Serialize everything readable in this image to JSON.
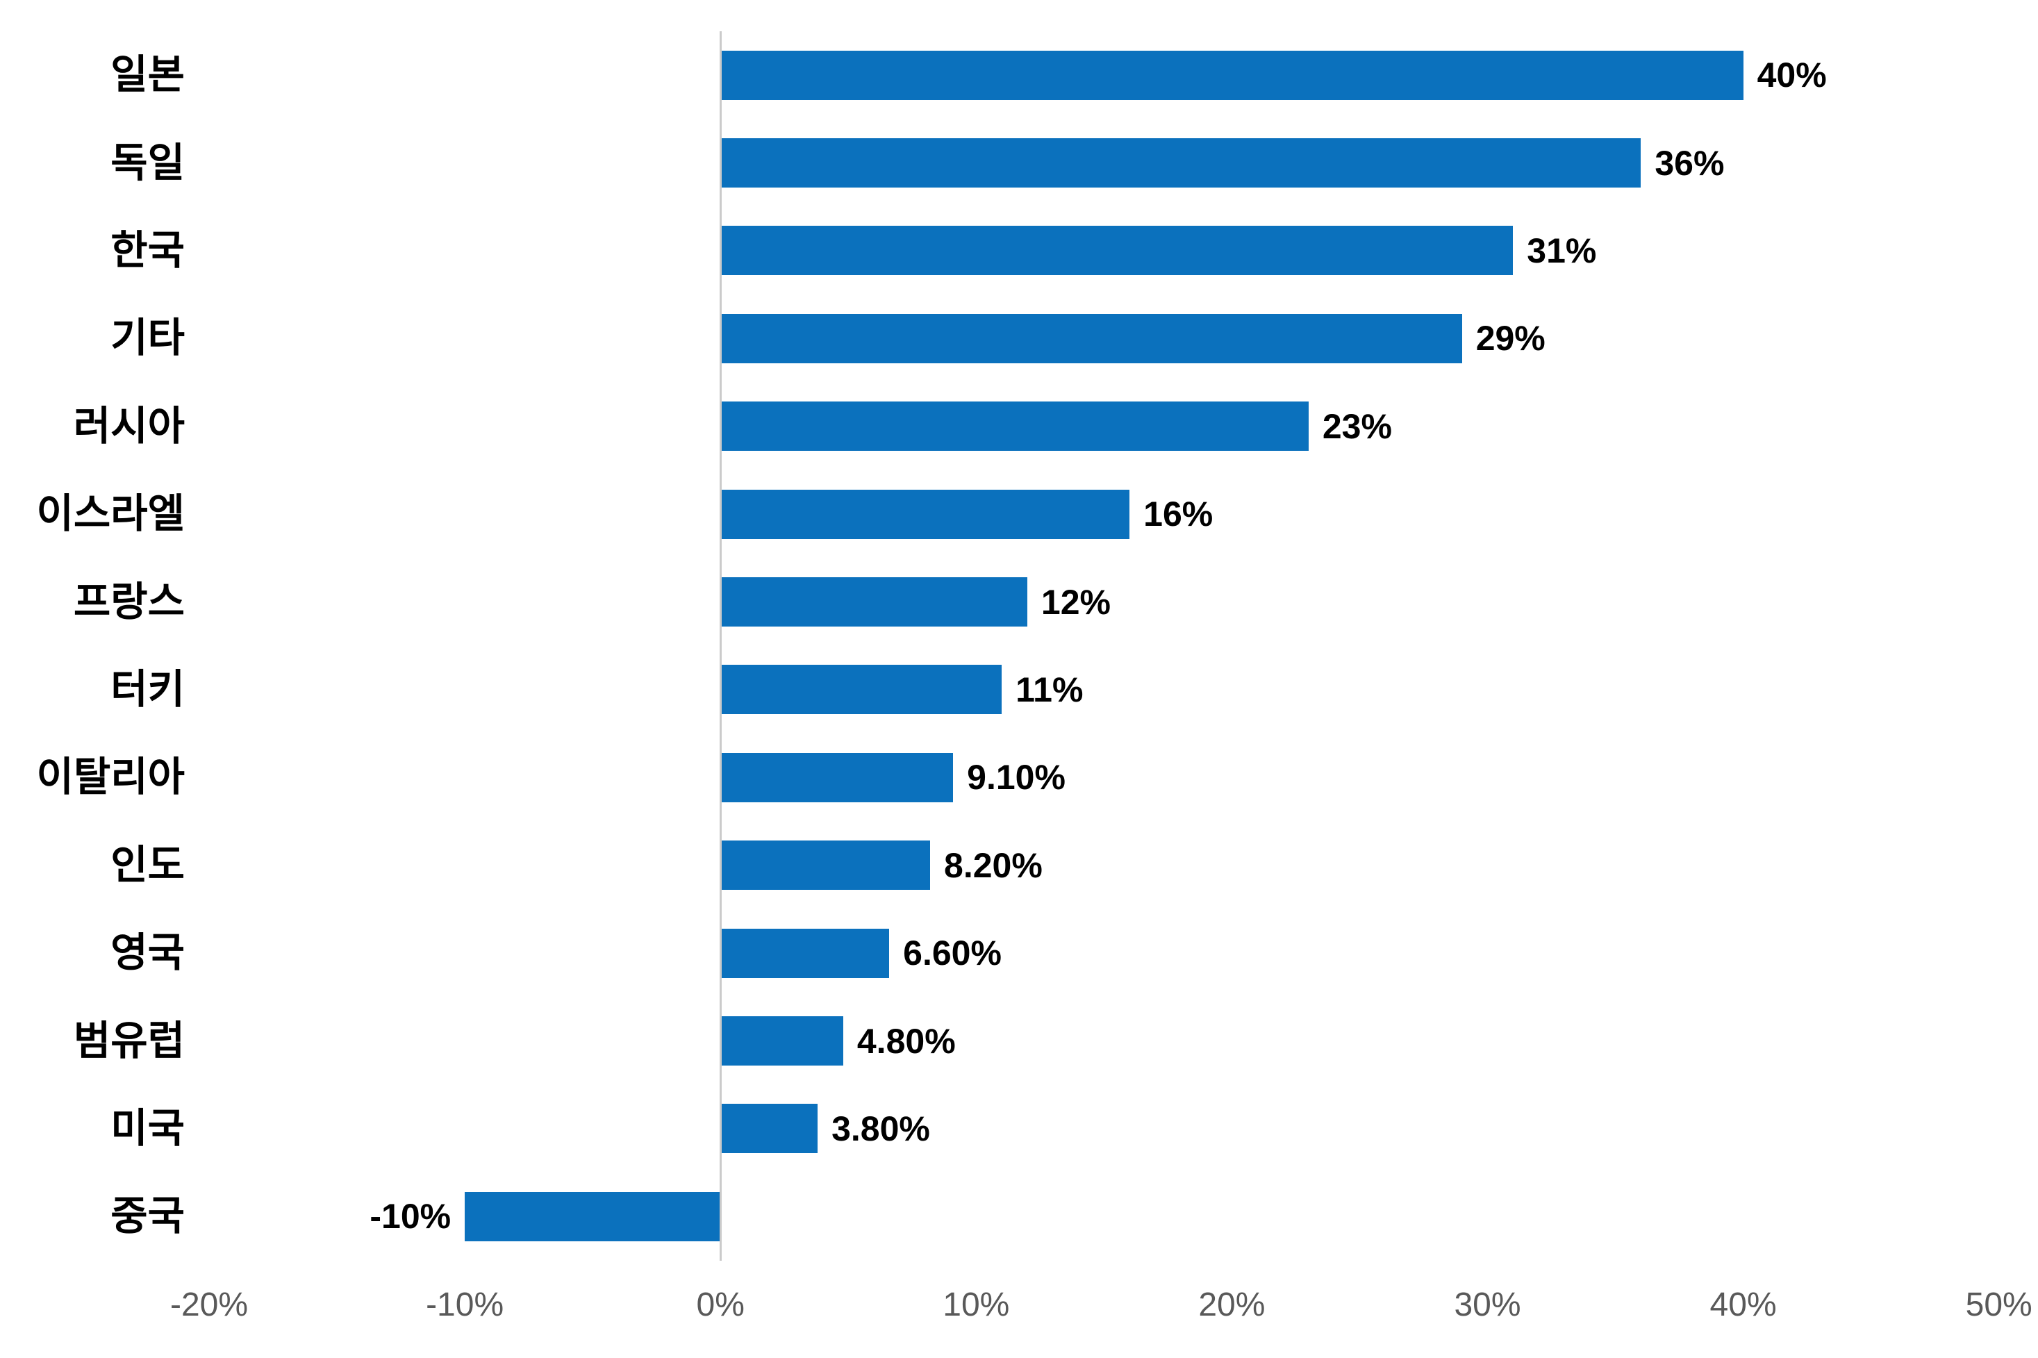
{
  "chart_data": {
    "type": "bar",
    "orientation": "horizontal",
    "title": "",
    "xlabel": "",
    "ylabel": "",
    "categories": [
      "일본",
      "독일",
      "한국",
      "기타",
      "러시아",
      "이스라엘",
      "프랑스",
      "터키",
      "이탈리아",
      "인도",
      "영국",
      "범유럽",
      "미국",
      "중국"
    ],
    "values": [
      40,
      36,
      31,
      29,
      23,
      16,
      12,
      11,
      9.1,
      8.2,
      6.6,
      4.8,
      3.8,
      -10
    ],
    "value_labels": [
      "40%",
      "36%",
      "31%",
      "29%",
      "23%",
      "16%",
      "12%",
      "11%",
      "9.10%",
      "8.20%",
      "6.60%",
      "4.80%",
      "3.80%",
      "-10%"
    ],
    "x_tick_labels": [
      "-20%",
      "-10%",
      "0%",
      "10%",
      "20%",
      "30%",
      "40%",
      "50%"
    ],
    "x_tick_values": [
      -20,
      -10,
      0,
      10,
      20,
      30,
      40,
      50
    ],
    "xlim": [
      -20,
      50
    ],
    "grid": false,
    "legend": false,
    "bar_color": "#0B71BD",
    "axis_line_color": "#CBCBCB",
    "tick_label_color": "#595959",
    "text_color": "#000000"
  }
}
